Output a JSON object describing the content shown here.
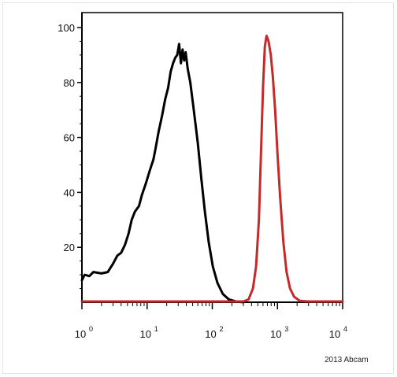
{
  "chart_data": {
    "type": "line",
    "title": "",
    "xlabel": "",
    "ylabel": "",
    "x_scale": "log",
    "xlim": [
      1,
      10000
    ],
    "ylim": [
      0,
      100
    ],
    "grid": false,
    "y_ticks": [
      20,
      40,
      60,
      80,
      100
    ],
    "x_ticks": [
      {
        "base": "10",
        "exp": "0",
        "value": 1
      },
      {
        "base": "10",
        "exp": "1",
        "value": 10
      },
      {
        "base": "10",
        "exp": "2",
        "value": 100
      },
      {
        "base": "10",
        "exp": "3",
        "value": 1000
      },
      {
        "base": "10",
        "exp": "4",
        "value": 10000
      }
    ],
    "series": [
      {
        "color": "#000000",
        "points": [
          [
            1,
            8
          ],
          [
            1.1,
            10
          ],
          [
            1.3,
            9.5
          ],
          [
            1.5,
            11
          ],
          [
            2,
            10.5
          ],
          [
            2.5,
            11
          ],
          [
            3,
            14
          ],
          [
            3.5,
            17
          ],
          [
            4,
            18
          ],
          [
            4.6,
            21
          ],
          [
            5.2,
            25
          ],
          [
            5.8,
            30
          ],
          [
            6.5,
            33
          ],
          [
            7.5,
            35
          ],
          [
            8.3,
            39
          ],
          [
            9.5,
            43
          ],
          [
            11,
            48
          ],
          [
            12.5,
            52
          ],
          [
            13.5,
            56
          ],
          [
            15,
            62
          ],
          [
            17,
            68
          ],
          [
            19,
            74
          ],
          [
            21,
            78
          ],
          [
            23,
            84
          ],
          [
            25,
            87
          ],
          [
            27,
            89
          ],
          [
            29,
            90
          ],
          [
            31,
            94
          ],
          [
            33,
            87
          ],
          [
            35,
            92
          ],
          [
            37,
            88
          ],
          [
            39,
            91
          ],
          [
            42,
            85
          ],
          [
            46,
            80
          ],
          [
            52,
            70
          ],
          [
            60,
            58
          ],
          [
            68,
            45
          ],
          [
            77,
            33
          ],
          [
            88,
            22
          ],
          [
            102,
            13
          ],
          [
            120,
            7
          ],
          [
            145,
            3
          ],
          [
            180,
            1
          ],
          [
            230,
            0.3
          ],
          [
            300,
            0
          ]
        ]
      },
      {
        "color": "#c42a2a",
        "points": [
          [
            1,
            0.3
          ],
          [
            100,
            0.3
          ],
          [
            300,
            0.3
          ],
          [
            360,
            1
          ],
          [
            420,
            5
          ],
          [
            470,
            13
          ],
          [
            520,
            30
          ],
          [
            560,
            55
          ],
          [
            600,
            78
          ],
          [
            640,
            93
          ],
          [
            680,
            97
          ],
          [
            730,
            95
          ],
          [
            790,
            90
          ],
          [
            850,
            82
          ],
          [
            920,
            70
          ],
          [
            1000,
            54
          ],
          [
            1100,
            38
          ],
          [
            1230,
            22
          ],
          [
            1380,
            11
          ],
          [
            1560,
            5
          ],
          [
            1800,
            2
          ],
          [
            2200,
            0.5
          ],
          [
            3000,
            0.3
          ],
          [
            10000,
            0.3
          ]
        ]
      }
    ]
  },
  "copyright": "2013 Abcam"
}
